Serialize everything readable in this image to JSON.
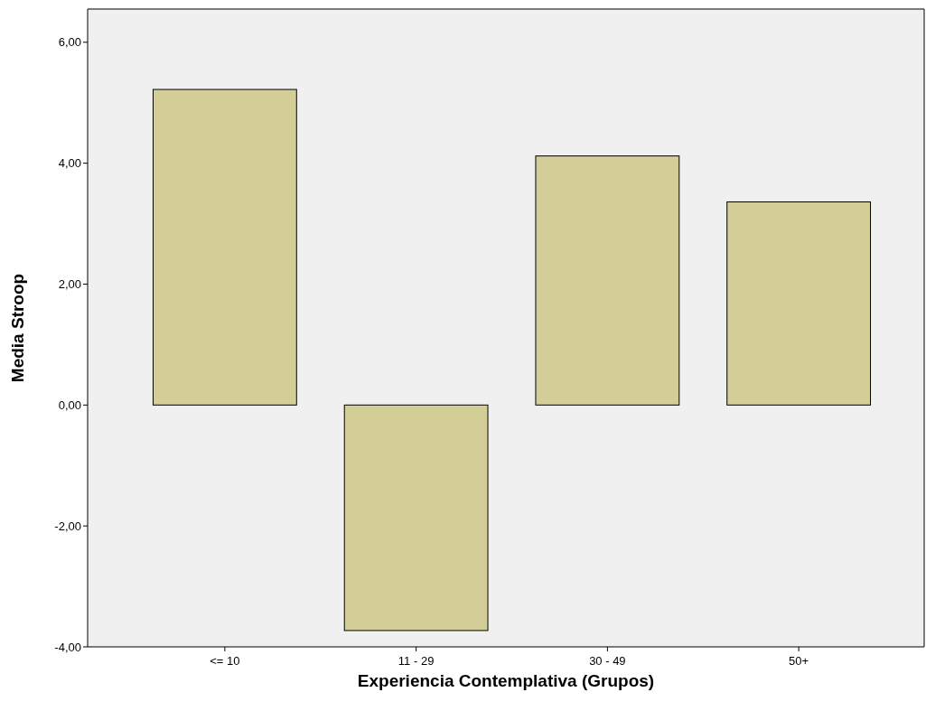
{
  "chart_data": {
    "type": "bar",
    "xlabel": "Experiencia Contemplativa (Grupos)",
    "ylabel": "Media Stroop",
    "categories": [
      "<= 10",
      "11 - 29",
      "30 - 49",
      "50+"
    ],
    "values": [
      5.22,
      -3.73,
      4.12,
      3.36
    ],
    "color": "#d3ce97",
    "ylim": [
      -4,
      6.55
    ],
    "yticks": [
      {
        "value": -4,
        "label": "-4,00"
      },
      {
        "value": -2,
        "label": "-2,00"
      },
      {
        "value": 0,
        "label": "0,00"
      },
      {
        "value": 2,
        "label": "2,00"
      },
      {
        "value": 4,
        "label": "4,00"
      },
      {
        "value": 6,
        "label": "6,00"
      }
    ],
    "grid": false
  }
}
